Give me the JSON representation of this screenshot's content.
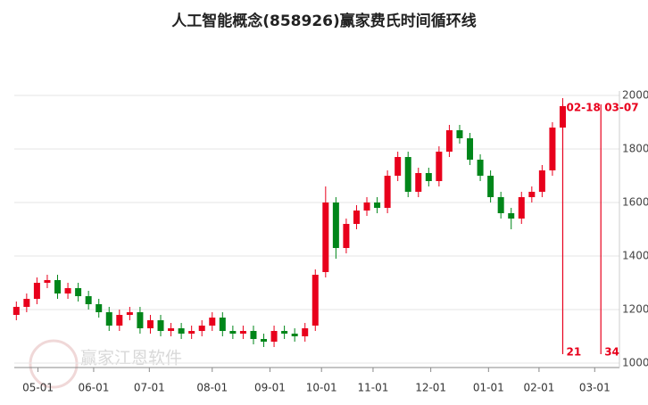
{
  "chart_data": {
    "type": "candlestick",
    "title": "人工智能概念(858926)赢家费氏时间循环线",
    "watermark": "赢家江恩软件",
    "open": [
      1180,
      1210,
      1240,
      1300,
      1310,
      1260,
      1280,
      1250,
      1220,
      1190,
      1140,
      1180,
      1190,
      1130,
      1160,
      1120,
      1130,
      1110,
      1120,
      1140,
      1170,
      1120,
      1110,
      1120,
      1090,
      1080,
      1120,
      1110,
      1100,
      1140,
      1340,
      1600,
      1430,
      1520,
      1570,
      1600,
      1580,
      1700,
      1770,
      1640,
      1710,
      1680,
      1790,
      1870,
      1840,
      1760,
      1700,
      1620,
      1560,
      1540,
      1620,
      1640,
      1720,
      1880
    ],
    "high": [
      1230,
      1260,
      1320,
      1330,
      1330,
      1300,
      1300,
      1270,
      1240,
      1210,
      1200,
      1210,
      1210,
      1180,
      1180,
      1150,
      1150,
      1140,
      1160,
      1190,
      1190,
      1140,
      1140,
      1140,
      1110,
      1140,
      1140,
      1130,
      1150,
      1350,
      1660,
      1620,
      1540,
      1590,
      1620,
      1620,
      1720,
      1790,
      1790,
      1730,
      1730,
      1810,
      1890,
      1890,
      1860,
      1780,
      1720,
      1640,
      1580,
      1640,
      1660,
      1740,
      1900,
      1990
    ],
    "low": [
      1160,
      1190,
      1220,
      1280,
      1240,
      1240,
      1230,
      1200,
      1170,
      1120,
      1120,
      1160,
      1110,
      1110,
      1100,
      1100,
      1090,
      1090,
      1100,
      1120,
      1100,
      1090,
      1090,
      1070,
      1060,
      1060,
      1090,
      1080,
      1080,
      1120,
      1320,
      1390,
      1410,
      1500,
      1550,
      1560,
      1560,
      1680,
      1620,
      1620,
      1660,
      1660,
      1770,
      1820,
      1740,
      1680,
      1600,
      1540,
      1500,
      1520,
      1600,
      1620,
      1700,
      1860
    ],
    "close": [
      1210,
      1240,
      1300,
      1310,
      1260,
      1280,
      1250,
      1220,
      1190,
      1140,
      1180,
      1190,
      1130,
      1160,
      1120,
      1130,
      1110,
      1120,
      1140,
      1170,
      1120,
      1110,
      1120,
      1090,
      1080,
      1120,
      1110,
      1100,
      1130,
      1330,
      1600,
      1430,
      1520,
      1570,
      1600,
      1580,
      1700,
      1770,
      1640,
      1710,
      1680,
      1790,
      1870,
      1840,
      1760,
      1700,
      1620,
      1560,
      1540,
      1620,
      1640,
      1720,
      1880,
      1960
    ],
    "up_color": "#e8001c",
    "down_color": "#00861a",
    "xlim": [
      -0.2,
      58.5
    ],
    "xticks": [
      {
        "value": 2.1,
        "label": "05-01"
      },
      {
        "value": 7.5,
        "label": "06-01"
      },
      {
        "value": 12.9,
        "label": "07-01"
      },
      {
        "value": 19.0,
        "label": "08-01"
      },
      {
        "value": 24.6,
        "label": "09-01"
      },
      {
        "value": 29.6,
        "label": "10-01"
      },
      {
        "value": 34.6,
        "label": "11-01"
      },
      {
        "value": 40.2,
        "label": "12-01"
      },
      {
        "value": 45.8,
        "label": "01-01"
      },
      {
        "value": 50.7,
        "label": "02-01"
      },
      {
        "value": 56.1,
        "label": "03-01"
      }
    ],
    "ylim": [
      1000,
      2000
    ],
    "yticks": [
      1000,
      1200,
      1400,
      1600,
      1800,
      2000
    ],
    "grid": true,
    "cycle_lines": [
      {
        "x": 53,
        "label": "02-18",
        "count": "21"
      },
      {
        "x": 56.7,
        "label": "03-07",
        "count": "34"
      }
    ],
    "cycle_color": "#e8001c"
  }
}
